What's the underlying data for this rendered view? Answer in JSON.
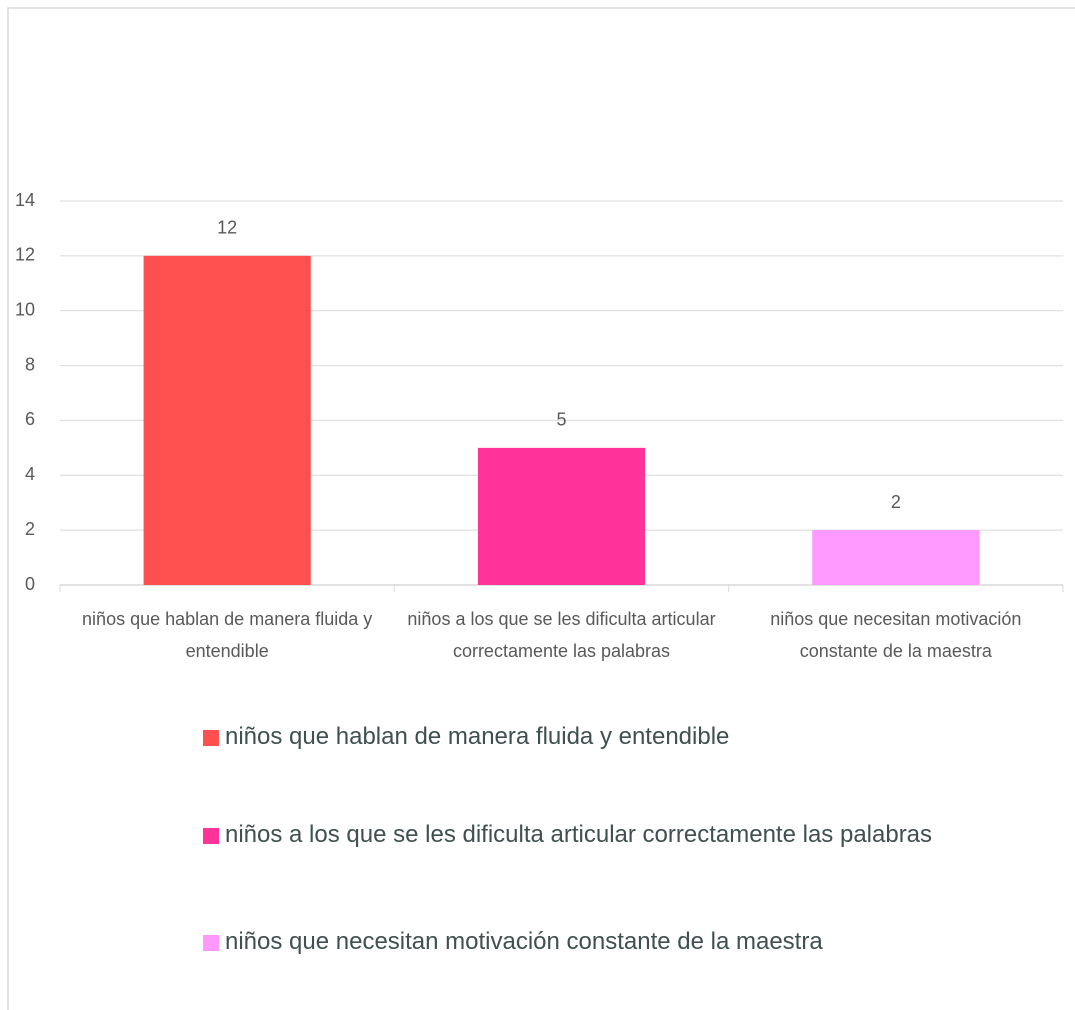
{
  "chart_data": {
    "type": "bar",
    "categories": [
      "niños que hablan de manera fluida y entendible",
      "niños a los que se les dificulta articular correctamente las palabras",
      "niños que necesitan motivación constante de la maestra"
    ],
    "values": [
      12,
      5,
      2
    ],
    "colors": [
      "#FF5050",
      "#FF3399",
      "#FF99FF"
    ],
    "ylim": [
      0,
      14
    ],
    "yticks": [
      0,
      2,
      4,
      6,
      8,
      10,
      12,
      14
    ],
    "grid": true
  }
}
